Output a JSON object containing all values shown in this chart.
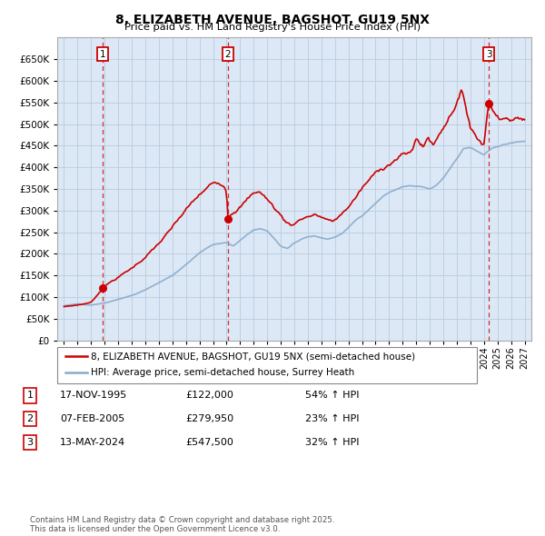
{
  "title1": "8, ELIZABETH AVENUE, BAGSHOT, GU19 5NX",
  "title2": "Price paid vs. HM Land Registry's House Price Index (HPI)",
  "legend_line1": "8, ELIZABETH AVENUE, BAGSHOT, GU19 5NX (semi-detached house)",
  "legend_line2": "HPI: Average price, semi-detached house, Surrey Heath",
  "transactions": [
    {
      "num": 1,
      "date": "17-NOV-1995",
      "price": "£122,000",
      "hpi_pct": "54% ↑ HPI",
      "year_x": 1995.88,
      "price_val": 122000
    },
    {
      "num": 2,
      "date": "07-FEB-2005",
      "price": "£279,950",
      "hpi_pct": "23% ↑ HPI",
      "year_x": 2005.1,
      "price_val": 279950
    },
    {
      "num": 3,
      "date": "13-MAY-2024",
      "price": "£547,500",
      "hpi_pct": "32% ↑ HPI",
      "year_x": 2024.37,
      "price_val": 547500
    }
  ],
  "footnote": "Contains HM Land Registry data © Crown copyright and database right 2025.\nThis data is licensed under the Open Government Licence v3.0.",
  "ylim": [
    0,
    700000
  ],
  "yticks": [
    0,
    50000,
    100000,
    150000,
    200000,
    250000,
    300000,
    350000,
    400000,
    450000,
    500000,
    550000,
    600000,
    650000
  ],
  "xlim": [
    1992.5,
    2027.5
  ],
  "red_color": "#cc0000",
  "blue_color": "#88aacc",
  "bg_color": "#dce8f5",
  "grid_color": "#b8cce0"
}
